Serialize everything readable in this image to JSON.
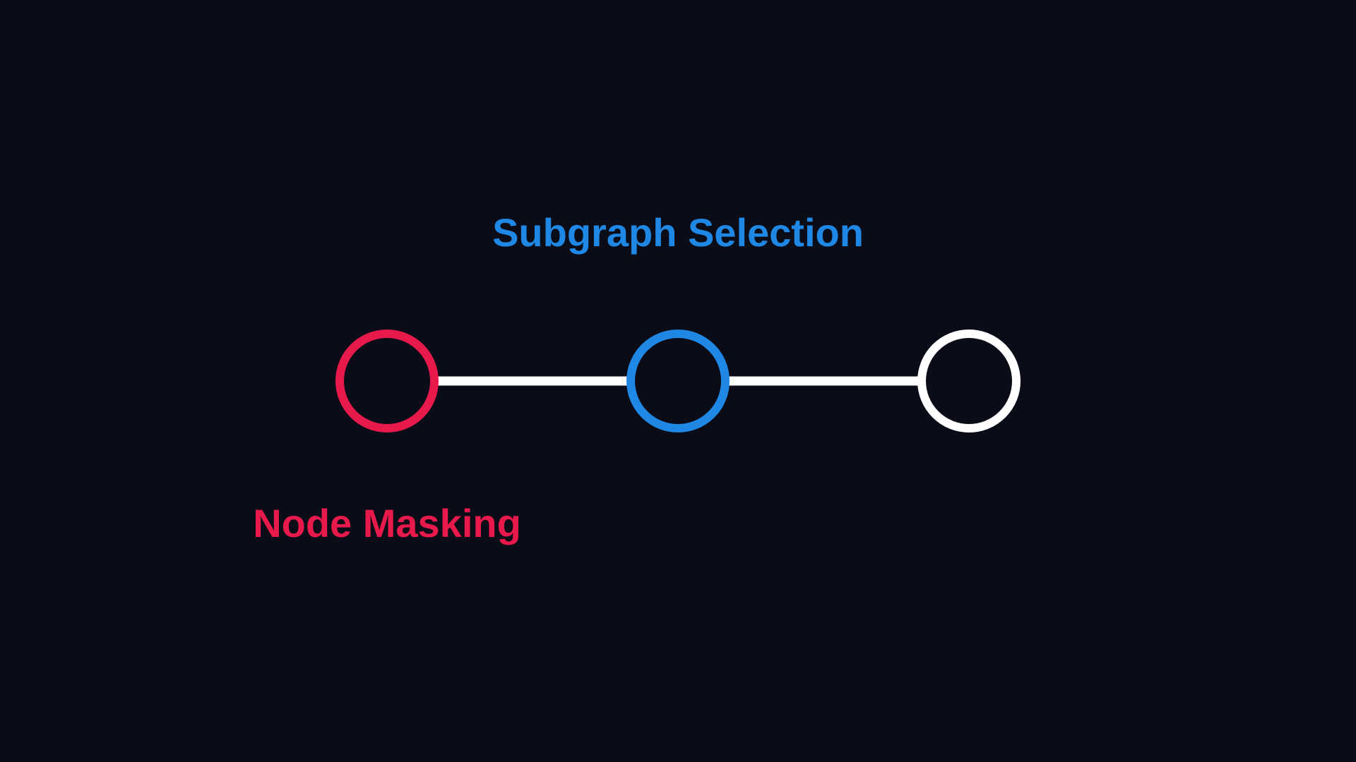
{
  "labels": {
    "subgraph_selection": "Subgraph Selection",
    "node_masking": "Node Masking"
  },
  "nodes": [
    {
      "id": "node-1",
      "role": "masked",
      "color": "#e8194b"
    },
    {
      "id": "node-2",
      "role": "selected",
      "color": "#1f88e5"
    },
    {
      "id": "node-3",
      "role": "default",
      "color": "#ffffff"
    }
  ],
  "edges": [
    {
      "from": "node-1",
      "to": "node-2",
      "color": "#ffffff"
    },
    {
      "from": "node-2",
      "to": "node-3",
      "color": "#ffffff"
    }
  ],
  "colors": {
    "background": "#0a0c18",
    "subgraph_selection": "#1f88e5",
    "node_masking": "#e8194b"
  }
}
